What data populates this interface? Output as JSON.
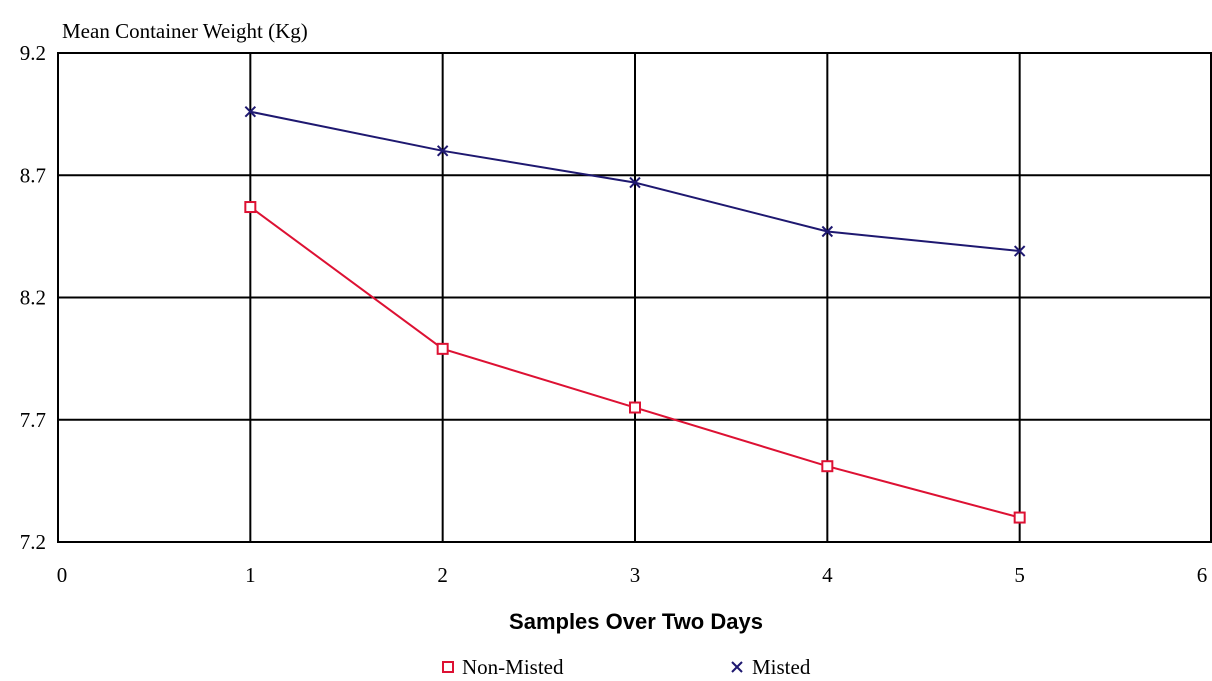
{
  "chart_data": {
    "type": "line",
    "title": "",
    "ylabel": "Mean Container Weight (Kg)",
    "xlabel": "Samples Over Two Days",
    "xlim": [
      0,
      6
    ],
    "ylim": [
      7.2,
      9.2
    ],
    "x_ticks": [
      "0",
      "1",
      "2",
      "3",
      "4",
      "5",
      "6"
    ],
    "y_ticks": [
      "9.2",
      "8.7",
      "8.2",
      "7.7",
      "7.2"
    ],
    "grid": true,
    "legend": "bottom-center",
    "series": [
      {
        "name": "Non-Misted",
        "color": "#dd1133",
        "marker": "square",
        "x": [
          1,
          2,
          3,
          4,
          5
        ],
        "values": [
          8.57,
          7.99,
          7.75,
          7.51,
          7.3
        ]
      },
      {
        "name": "Misted",
        "color": "#1e1870",
        "marker": "x",
        "x": [
          1,
          2,
          3,
          4,
          5
        ],
        "values": [
          8.96,
          8.8,
          8.67,
          8.47,
          8.39
        ]
      }
    ]
  }
}
